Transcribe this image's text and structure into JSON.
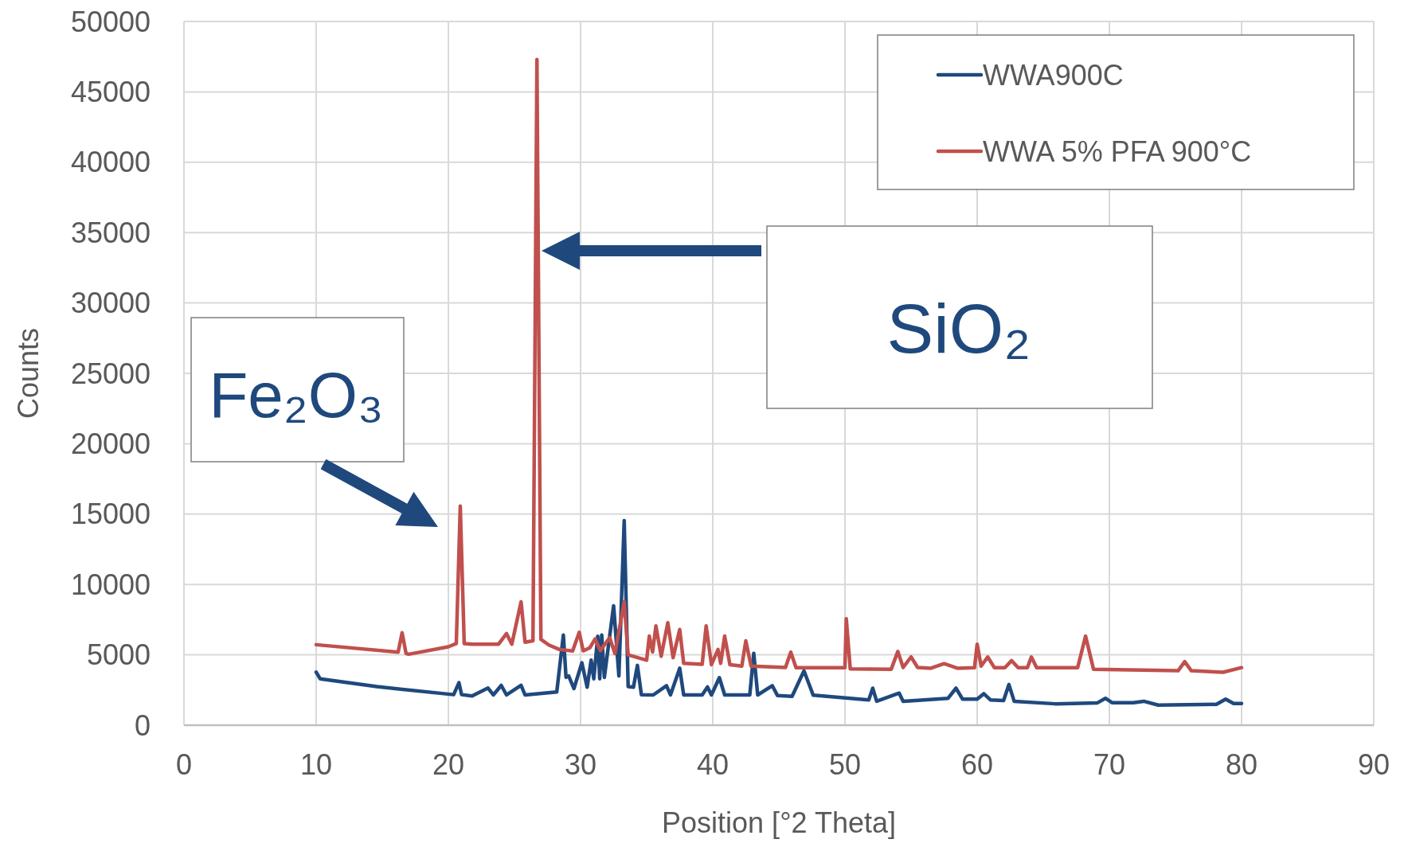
{
  "chart_data": {
    "type": "line",
    "xlabel": "Position [°2 Theta]",
    "ylabel": "Counts",
    "xlim": [
      0,
      90
    ],
    "xticks": [
      0,
      10,
      20,
      30,
      40,
      50,
      60,
      70,
      80,
      90
    ],
    "ylim": [
      0,
      50000
    ],
    "yticks": [
      0,
      5000,
      10000,
      15000,
      20000,
      25000,
      30000,
      35000,
      40000,
      45000,
      50000
    ],
    "grid": true,
    "legend": "top right",
    "line_style": "solid",
    "annotations": [
      "SiO₂",
      "Fe₂O₃"
    ],
    "series": [
      {
        "name": "WWA900C",
        "color": "#1f497d",
        "x": [
          10,
          10.3,
          14.6,
          20.4,
          20.8,
          21.0,
          21.8,
          23.0,
          23.4,
          24.0,
          24.4,
          25.5,
          25.8,
          28.2,
          28.7,
          28.9,
          29.1,
          29.5,
          30.1,
          30.5,
          30.8,
          31.0,
          31.3,
          31.45,
          31.6,
          31.8,
          32.5,
          32.9,
          33.3,
          33.6,
          34.0,
          34.3,
          34.6,
          35.5,
          36.5,
          36.8,
          37.5,
          37.8,
          39.2,
          39.6,
          39.9,
          40.5,
          40.9,
          42.8,
          43.1,
          43.4,
          44.5,
          44.9,
          46.0,
          46.9,
          47.6,
          51.8,
          52.1,
          52.4,
          54.1,
          54.4,
          57.8,
          58.4,
          58.9,
          60.0,
          60.5,
          61.0,
          62.0,
          62.4,
          62.8,
          65.9,
          69.1,
          69.7,
          70.2,
          71.8,
          72.6,
          73.7,
          78.1,
          78.8,
          79.4,
          80
        ],
        "values": [
          3770,
          3300,
          2740,
          2170,
          3020,
          2170,
          2080,
          2640,
          2150,
          2830,
          2150,
          2830,
          2150,
          2360,
          6400,
          3400,
          3500,
          2600,
          4430,
          2700,
          4620,
          3300,
          6320,
          3300,
          6400,
          3400,
          8490,
          3500,
          14530,
          2740,
          2700,
          4250,
          2170,
          2150,
          2810,
          2150,
          4050,
          2150,
          2150,
          2720,
          2150,
          3380,
          2150,
          2150,
          5100,
          2150,
          2810,
          2100,
          2050,
          3860,
          2130,
          1800,
          2630,
          1700,
          2280,
          1700,
          1910,
          2630,
          1850,
          1850,
          2240,
          1800,
          1750,
          2890,
          1700,
          1520,
          1590,
          1910,
          1600,
          1600,
          1700,
          1430,
          1480,
          1850,
          1540,
          1540
        ]
      },
      {
        "name": "WWA 5% PFA 900°C",
        "color": "#c0504d",
        "x": [
          10,
          16.2,
          16.5,
          16.8,
          17.0,
          20.0,
          20.6,
          20.9,
          21.2,
          21.8,
          23.8,
          24.4,
          24.8,
          25.5,
          25.8,
          26.4,
          26.7,
          27.0,
          27.6,
          28.4,
          29.4,
          29.9,
          30.2,
          30.7,
          31.1,
          31.5,
          32.2,
          32.6,
          33.3,
          33.6,
          35.0,
          35.2,
          35.45,
          35.7,
          36.1,
          36.6,
          37.0,
          37.5,
          37.8,
          39.2,
          39.5,
          39.9,
          40.4,
          40.6,
          40.9,
          41.3,
          42.2,
          42.5,
          42.9,
          45.5,
          45.9,
          46.3,
          50.0,
          50.1,
          50.4,
          53.5,
          54.0,
          54.4,
          55.0,
          55.5,
          56.5,
          57.5,
          58.5,
          59.8,
          60.0,
          60.3,
          60.8,
          61.3,
          62.1,
          62.6,
          63.1,
          63.8,
          64.1,
          64.5,
          67.6,
          68.2,
          68.8,
          75.2,
          75.7,
          76.2,
          78.6,
          80
        ],
        "values": [
          5720,
          5190,
          6570,
          5100,
          5040,
          5570,
          5800,
          15570,
          5800,
          5760,
          5760,
          6510,
          5760,
          8770,
          5900,
          6000,
          47300,
          6100,
          5700,
          5380,
          5280,
          6600,
          5280,
          5500,
          6130,
          5300,
          6220,
          5090,
          8770,
          5000,
          4620,
          6330,
          5200,
          7050,
          4900,
          7280,
          4800,
          6800,
          4400,
          4330,
          7050,
          4300,
          5380,
          4400,
          6330,
          4300,
          4200,
          5990,
          4200,
          4100,
          5190,
          4090,
          4090,
          7570,
          4000,
          3980,
          5240,
          4100,
          4850,
          4100,
          4050,
          4370,
          4050,
          4090,
          5760,
          4200,
          4850,
          4090,
          4090,
          4590,
          4090,
          4090,
          4850,
          4090,
          4090,
          6330,
          3980,
          3870,
          4520,
          3870,
          3760,
          4090
        ]
      }
    ]
  }
}
